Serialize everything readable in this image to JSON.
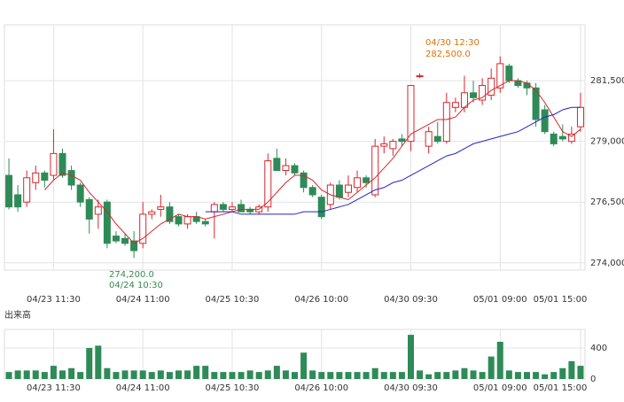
{
  "chart_data": [
    {
      "type": "candlestick",
      "categories": [
        null,
        null,
        null,
        null,
        null,
        "04/23 11:30",
        null,
        null,
        null,
        null,
        null,
        null,
        null,
        null,
        null,
        "04/24 11:00",
        null,
        null,
        null,
        null,
        null,
        null,
        null,
        null,
        null,
        "04/25 10:30",
        null,
        null,
        null,
        null,
        null,
        null,
        null,
        null,
        null,
        "04/26 10:00",
        null,
        null,
        null,
        null,
        null,
        null,
        null,
        null,
        null,
        "04/30 09:30",
        null,
        null,
        null,
        null,
        null,
        null,
        null,
        null,
        null,
        "05/01 09:00",
        null,
        null,
        null,
        null,
        null,
        null,
        null,
        null,
        "05/01 15:00"
      ],
      "open": [
        277600,
        276800,
        276500,
        277300,
        277700,
        277600,
        278500,
        277800,
        277200,
        276600,
        276000,
        276500,
        275100,
        275000,
        274900,
        274800,
        276000,
        276200,
        276300,
        275900,
        275600,
        275900,
        275700,
        276100,
        276400,
        276200,
        276400,
        276200,
        276100,
        276300,
        278300,
        277800,
        278000,
        277700,
        277100,
        276700,
        276400,
        277200,
        276900,
        277100,
        277500,
        276800,
        278800,
        278700,
        279100,
        279000,
        281700,
        278800,
        279200,
        279000,
        280400,
        280400,
        281000,
        280700,
        280900,
        281200,
        282100,
        281500,
        281400,
        281200,
        280300,
        279300,
        279200,
        279000,
        279600
      ],
      "high": [
        278300,
        277200,
        277800,
        278000,
        277800,
        279500,
        278700,
        278000,
        277300,
        276700,
        276600,
        276600,
        275300,
        275200,
        275300,
        276500,
        276200,
        276800,
        276500,
        276000,
        276000,
        276100,
        275800,
        276500,
        276500,
        276500,
        276600,
        276300,
        276400,
        278500,
        278700,
        278300,
        278100,
        277800,
        277200,
        276800,
        277300,
        277400,
        277600,
        277800,
        277600,
        279100,
        279200,
        279100,
        279300,
        281300,
        281800,
        279600,
        279800,
        281000,
        280800,
        281700,
        281500,
        281600,
        282000,
        282500,
        282200,
        281600,
        281500,
        281400,
        280500,
        279400,
        279700,
        279600,
        281000
      ],
      "low": [
        276200,
        276100,
        276300,
        277000,
        277100,
        277400,
        277500,
        277000,
        276300,
        275200,
        275400,
        274600,
        274800,
        274700,
        274200,
        274600,
        275800,
        275900,
        275600,
        275500,
        275400,
        275600,
        275500,
        275000,
        276100,
        276100,
        276100,
        276000,
        276000,
        276100,
        277800,
        277600,
        277600,
        276900,
        276700,
        275800,
        276200,
        276600,
        276700,
        276900,
        277100,
        276700,
        278500,
        278400,
        278800,
        278600,
        281600,
        278500,
        278900,
        278900,
        280200,
        280200,
        280600,
        280500,
        280700,
        281000,
        281400,
        281200,
        280900,
        279600,
        279300,
        278800,
        279000,
        278900,
        279400
      ],
      "close": [
        276300,
        276300,
        277500,
        277700,
        277400,
        278500,
        277600,
        277200,
        276500,
        275800,
        276300,
        274800,
        274900,
        274800,
        274500,
        276000,
        276100,
        276300,
        275700,
        275600,
        275900,
        275700,
        275600,
        276400,
        276200,
        276300,
        276100,
        276100,
        276300,
        278200,
        277800,
        278000,
        277700,
        277100,
        276800,
        275900,
        277200,
        276700,
        277200,
        277500,
        277300,
        278800,
        278900,
        279000,
        279000,
        281300,
        281700,
        279400,
        279000,
        280600,
        280600,
        281000,
        280800,
        281300,
        281600,
        282200,
        281500,
        281300,
        281200,
        279900,
        279400,
        278900,
        279100,
        279300,
        280400
      ],
      "up_color": "#d9262c",
      "down_color": "#2e8b57",
      "lines": [
        {
          "color": "#d9262c",
          "values": [
            null,
            null,
            null,
            null,
            277000,
            277400,
            277700,
            277600,
            277400,
            276900,
            276500,
            276100,
            275600,
            275200,
            274800,
            275000,
            275300,
            275600,
            275800,
            276000,
            275900,
            275900,
            275800,
            275900,
            276000,
            276100,
            276200,
            276200,
            276200,
            276500,
            276900,
            277300,
            277600,
            277600,
            277400,
            277000,
            276800,
            276700,
            276600,
            276900,
            277200,
            277500,
            277900,
            278300,
            278800,
            279300,
            279500,
            279700,
            279900,
            279900,
            280000,
            280400,
            280700,
            280800,
            281100,
            281300,
            281500,
            281500,
            281400,
            281100,
            280600,
            280000,
            279400,
            279200,
            279500
          ]
        },
        {
          "color": "#2323c8",
          "values": [
            null,
            null,
            null,
            null,
            null,
            null,
            null,
            null,
            null,
            null,
            null,
            null,
            null,
            null,
            null,
            null,
            null,
            null,
            null,
            null,
            null,
            null,
            276100,
            276100,
            276100,
            276100,
            276000,
            276000,
            276000,
            276000,
            276000,
            276000,
            276000,
            276100,
            276100,
            276100,
            276200,
            276300,
            276400,
            276600,
            276800,
            277000,
            277100,
            277300,
            277400,
            277600,
            277800,
            278000,
            278200,
            278400,
            278500,
            278700,
            278900,
            279000,
            279100,
            279200,
            279300,
            279400,
            279600,
            279800,
            280000,
            280100,
            280300,
            280400,
            280400
          ]
        }
      ],
      "annotations": [
        [
          "04/30 12:30",
          "282,500.0"
        ],
        [
          "274,200.0",
          "04/24 10:30"
        ]
      ],
      "ylim": [
        273700,
        283800
      ],
      "yticks": [
        {
          "value": 274000,
          "label": "274,000"
        },
        {
          "value": 276500,
          "label": "276,500"
        },
        {
          "value": 279000,
          "label": "279,000"
        },
        {
          "value": 281500,
          "label": "281,500"
        }
      ],
      "grid": true
    },
    {
      "type": "bar",
      "title": "出来高",
      "categories": [
        null,
        null,
        null,
        null,
        null,
        "04/23 11:30",
        null,
        null,
        null,
        null,
        null,
        null,
        null,
        null,
        null,
        "04/24 11:00",
        null,
        null,
        null,
        null,
        null,
        null,
        null,
        null,
        null,
        "04/25 10:30",
        null,
        null,
        null,
        null,
        null,
        null,
        null,
        null,
        null,
        "04/26 10:00",
        null,
        null,
        null,
        null,
        null,
        null,
        null,
        null,
        null,
        "04/30 09:30",
        null,
        null,
        null,
        null,
        null,
        null,
        null,
        null,
        null,
        "05/01 09:00",
        null,
        null,
        null,
        null,
        null,
        null,
        null,
        null,
        "05/01 15:00"
      ],
      "values": [
        90,
        110,
        110,
        110,
        90,
        170,
        110,
        140,
        90,
        400,
        430,
        140,
        90,
        110,
        110,
        110,
        90,
        110,
        90,
        110,
        110,
        170,
        170,
        90,
        90,
        90,
        90,
        110,
        90,
        110,
        170,
        110,
        90,
        340,
        110,
        90,
        90,
        90,
        90,
        90,
        90,
        140,
        90,
        90,
        90,
        570,
        110,
        60,
        90,
        90,
        110,
        140,
        110,
        90,
        290,
        480,
        110,
        90,
        90,
        90,
        60,
        90,
        140,
        230,
        170
      ],
      "color": "#2e8b57",
      "ylim": [
        0,
        640
      ],
      "yticks": [
        0,
        400
      ],
      "grid": true
    }
  ]
}
